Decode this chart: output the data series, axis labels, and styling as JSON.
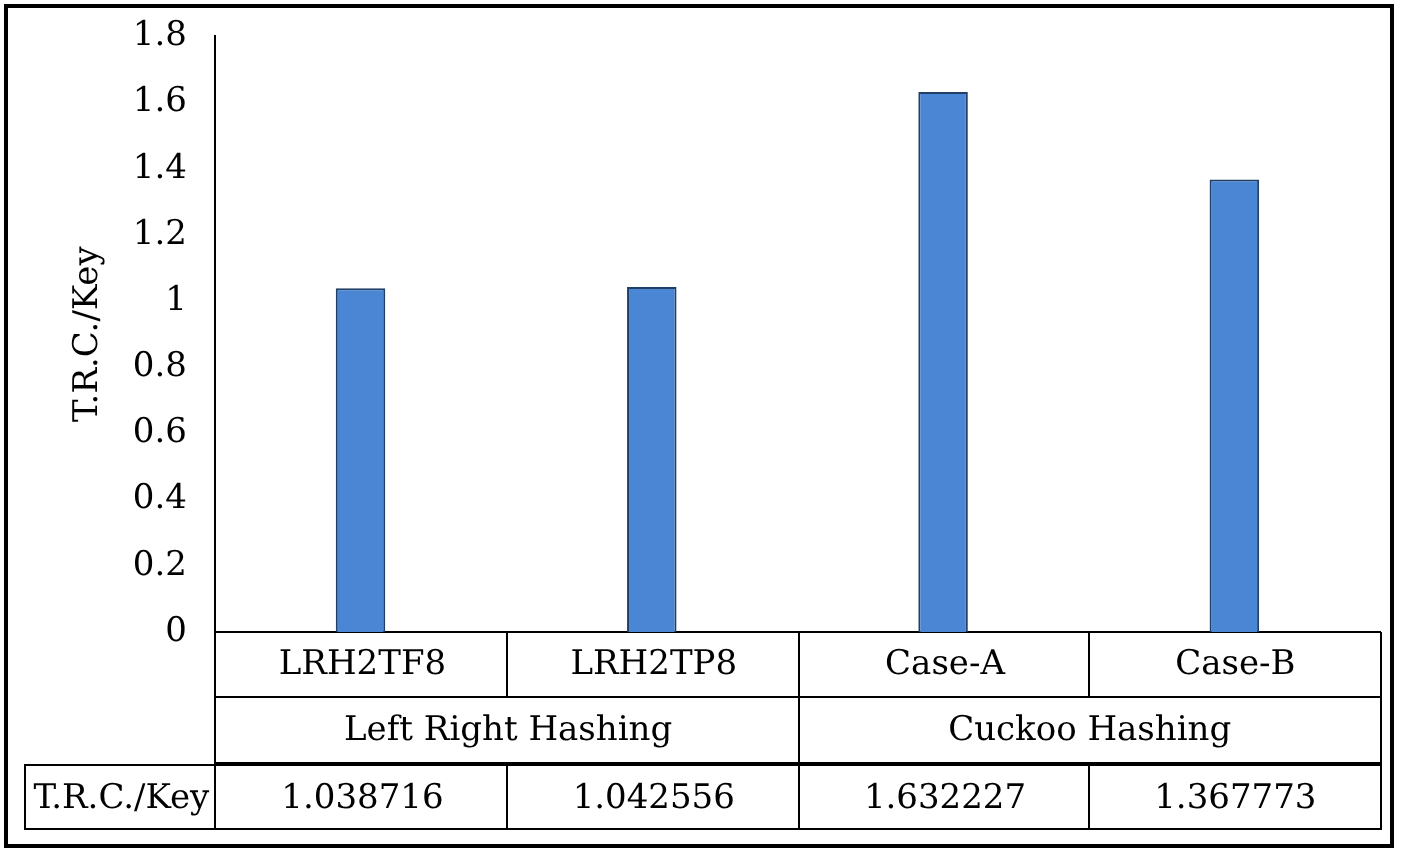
{
  "chart_data": {
    "type": "bar",
    "ylabel": "T.R.C./Key",
    "categories": [
      "LRH2TF8",
      "LRH2TP8",
      "Case-A",
      "Case-B"
    ],
    "values": [
      1.038716,
      1.042556,
      1.632227,
      1.367773
    ],
    "value_labels": [
      "1.038716",
      "1.042556",
      "1.632227",
      "1.367773"
    ],
    "color": "#4a86d4",
    "ylim": [
      0,
      1.8
    ],
    "yticks": [
      0,
      0.2,
      0.4,
      0.6,
      0.8,
      1,
      1.2,
      1.4,
      1.6,
      1.8
    ],
    "grid": false,
    "legend": false,
    "annotations": [
      "Left Right Hashing",
      "Cuckoo Hashing"
    ]
  }
}
